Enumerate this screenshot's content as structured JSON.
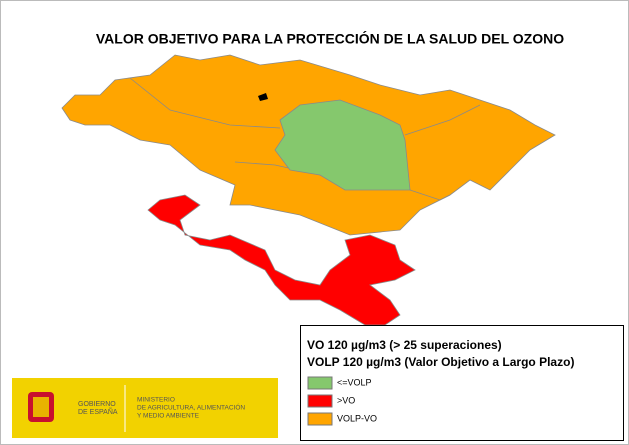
{
  "title": "VALOR OBJETIVO PARA LA PROTECCIÓN DE LA SALUD DEL OZONO",
  "legend": {
    "title_lines": [
      "VO 120 µg/m3 (> 25 superaciones)",
      "VOLP 120 µg/m3 (Valor Objetivo a Largo Plazo)"
    ],
    "items": [
      {
        "label": "<=VOLP",
        "color": "#85c86d"
      },
      {
        "label": ">VO",
        "color": "#ff0000"
      },
      {
        "label": "VOLP-VO",
        "color": "#ffa500"
      }
    ]
  },
  "logo": {
    "government": [
      "GOBIERNO",
      "DE ESPAÑA"
    ],
    "ministry": [
      "MINISTERIO",
      "DE AGRICULTURA, ALIMENTACIÓN",
      "Y MEDIO AMBIENTE"
    ]
  }
}
